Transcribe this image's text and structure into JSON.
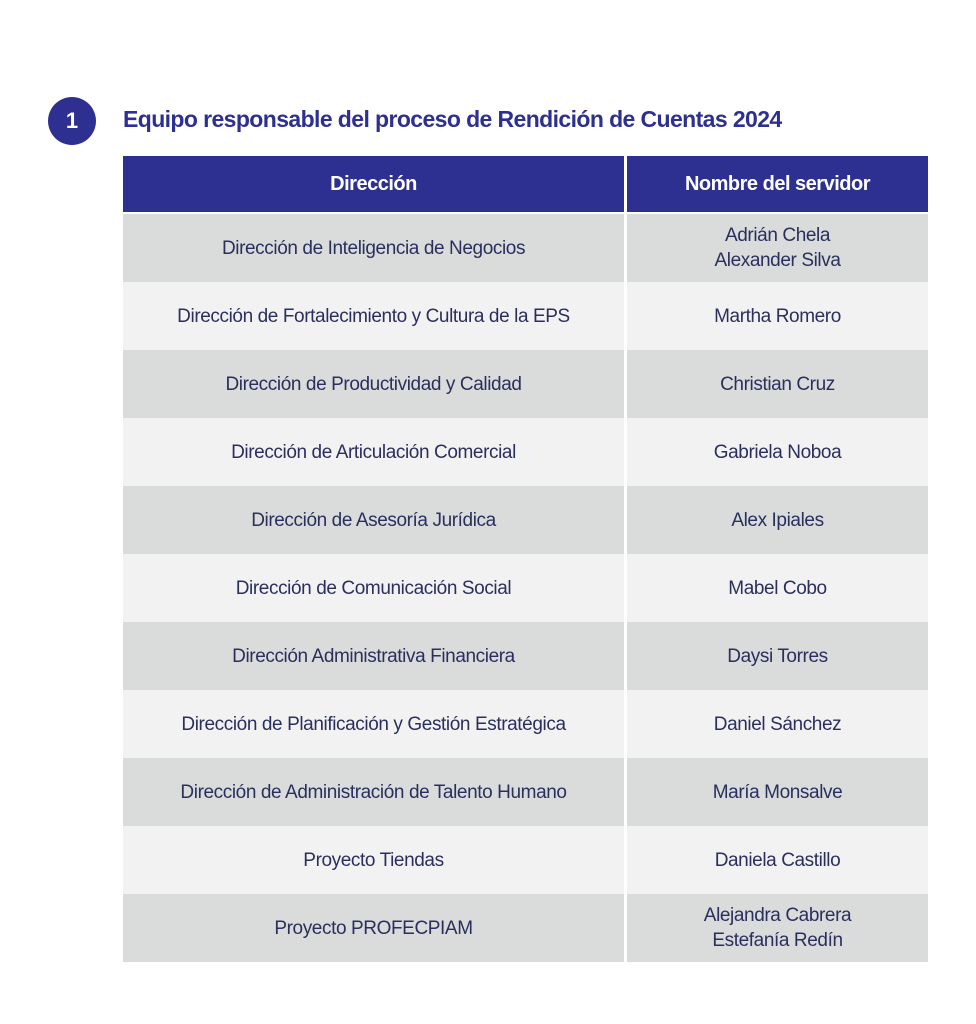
{
  "section": {
    "number": "1",
    "title": "Equipo responsable del proceso de Rendición de Cuentas 2024"
  },
  "table": {
    "headers": {
      "direccion": "Dirección",
      "servidor": "Nombre del servidor"
    },
    "rows": [
      {
        "direccion": "Dirección de Inteligencia de Negocios",
        "servidores": [
          "Adrián Chela",
          "Alexander Silva"
        ]
      },
      {
        "direccion": "Dirección de Fortalecimiento y Cultura de la EPS",
        "servidores": [
          "Martha Romero"
        ]
      },
      {
        "direccion": "Dirección de Productividad y Calidad",
        "servidores": [
          "Christian Cruz"
        ]
      },
      {
        "direccion": "Dirección de Articulación Comercial",
        "servidores": [
          "Gabriela Noboa"
        ]
      },
      {
        "direccion": "Dirección de Asesoría Jurídica",
        "servidores": [
          "Alex Ipiales"
        ]
      },
      {
        "direccion": "Dirección de Comunicación Social",
        "servidores": [
          "Mabel Cobo"
        ]
      },
      {
        "direccion": "Dirección Administrativa Financiera",
        "servidores": [
          "Daysi Torres"
        ]
      },
      {
        "direccion": "Dirección de Planificación y  Gestión Estratégica",
        "servidores": [
          "Daniel Sánchez"
        ]
      },
      {
        "direccion": "Dirección de Administración de Talento Humano",
        "servidores": [
          "María Monsalve"
        ]
      },
      {
        "direccion": "Proyecto Tiendas",
        "servidores": [
          "Daniela Castillo"
        ]
      },
      {
        "direccion": "Proyecto PROFECPIAM",
        "servidores": [
          "Alejandra Cabrera",
          "Estefanía Redín"
        ]
      }
    ]
  }
}
